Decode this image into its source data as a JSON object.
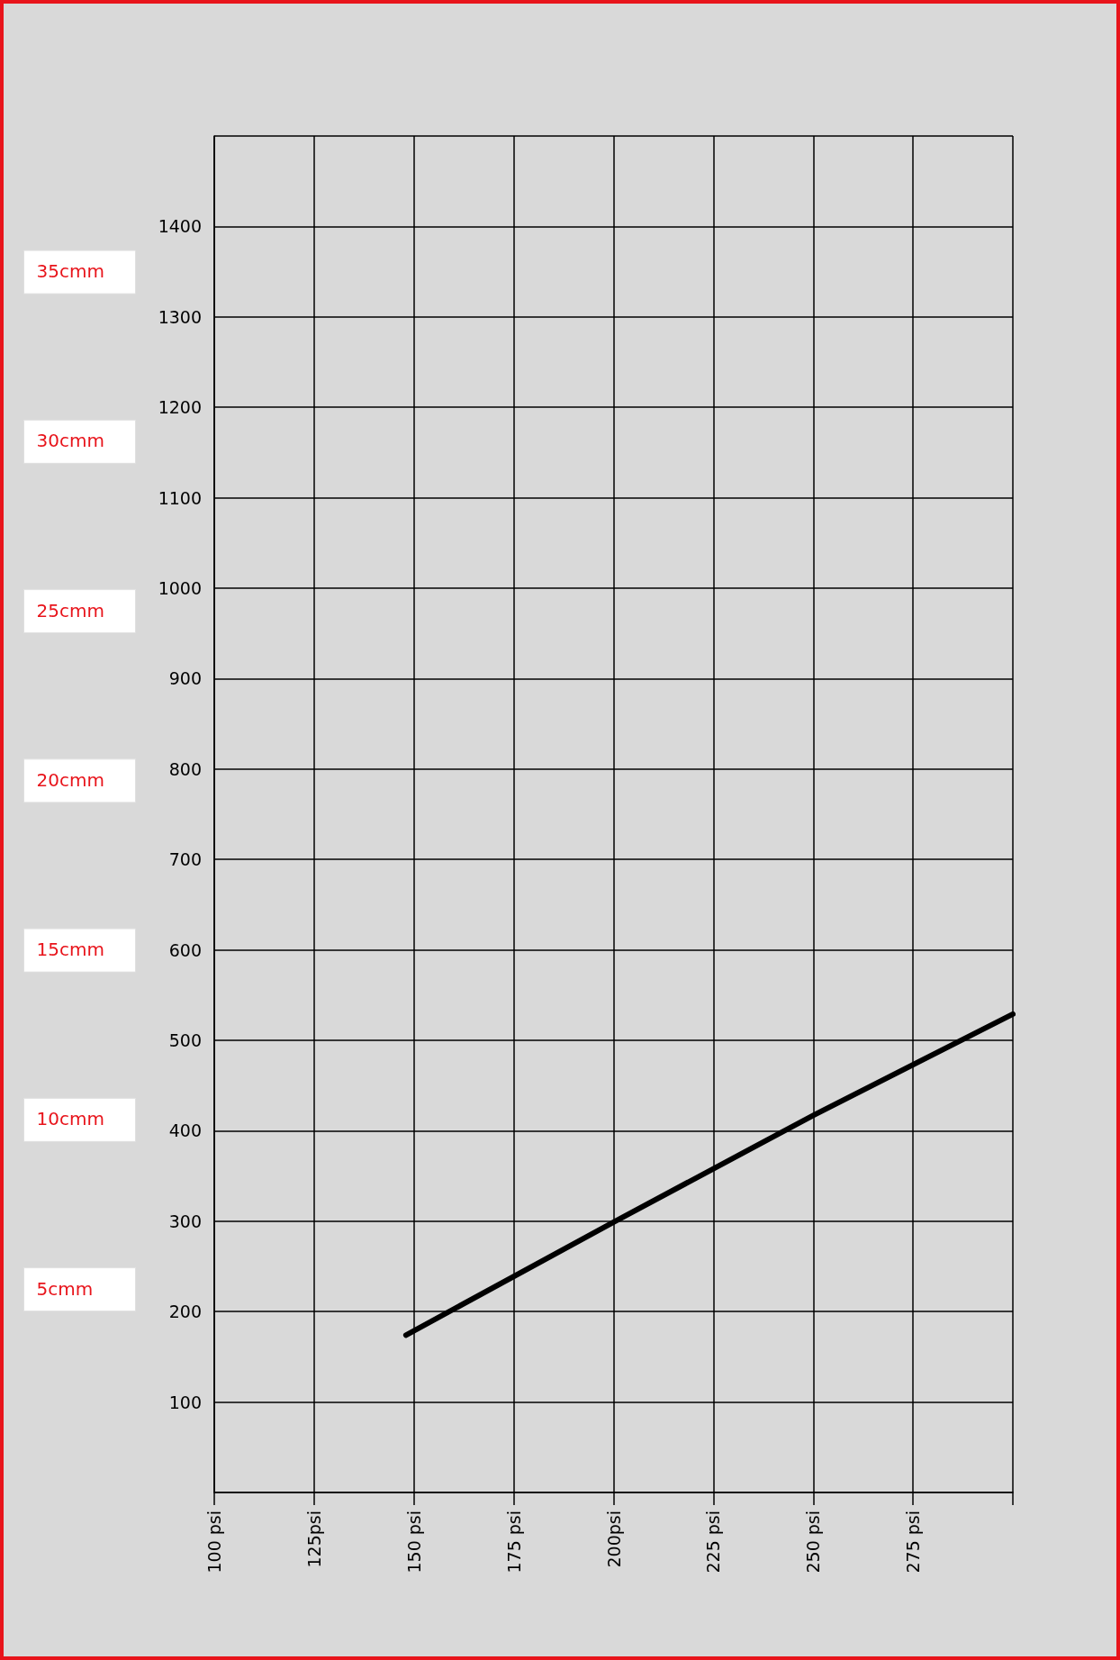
{
  "chart_data": {
    "type": "line",
    "x": [
      148,
      200,
      250,
      300
    ],
    "values": [
      174,
      299,
      417,
      529
    ],
    "color": "#000000",
    "marker": "none",
    "line_style": "solid",
    "grid": true,
    "xlim": [
      100,
      300
    ],
    "xticks": [
      {
        "value": 100,
        "label": "100 psi"
      },
      {
        "value": 125,
        "label": "125psi"
      },
      {
        "value": 150,
        "label": "150 psi"
      },
      {
        "value": 175,
        "label": "175 psi"
      },
      {
        "value": 200,
        "label": "200psi"
      },
      {
        "value": 225,
        "label": "225 psi"
      },
      {
        "value": 250,
        "label": "250 psi"
      },
      {
        "value": 275,
        "label": "275 psi"
      },
      {
        "value": 300,
        "label": null
      }
    ],
    "ylim": [
      0,
      1500
    ],
    "yticks": [
      {
        "value": 0,
        "label": null
      },
      100,
      200,
      300,
      400,
      500,
      600,
      700,
      800,
      900,
      1000,
      1100,
      1200,
      1300,
      1400,
      {
        "value": 1500,
        "label": null
      }
    ],
    "annotations": [
      "5cmm",
      "10cmm",
      "15cmm",
      "20cmm",
      "25cmm",
      "30cmm",
      "35cmm"
    ]
  }
}
